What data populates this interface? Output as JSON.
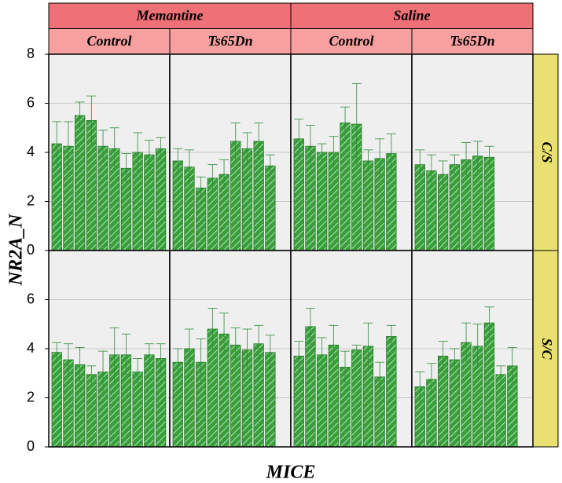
{
  "chart_data": {
    "type": "bar",
    "xlabel": "MICE",
    "ylabel": "NR2A_N",
    "ylim": [
      0,
      8
    ],
    "yticks": [
      0,
      2,
      4,
      6,
      8
    ],
    "grid": true,
    "color": "#3a9e3a",
    "column_groups": [
      {
        "label": "Memantine",
        "columns": [
          "Control",
          "Ts65Dn"
        ]
      },
      {
        "label": "Saline",
        "columns": [
          "Control",
          "Ts65Dn"
        ]
      }
    ],
    "rows": [
      "C/S",
      "S/C"
    ],
    "panels": [
      [
        {
          "values": [
            4.35,
            4.25,
            5.5,
            5.3,
            4.25,
            4.15,
            3.35,
            4.0,
            3.9,
            4.15
          ],
          "errors": [
            0.9,
            1.0,
            0.55,
            1.0,
            0.65,
            0.85,
            0.6,
            0.8,
            0.6,
            0.45
          ]
        },
        {
          "values": [
            3.65,
            3.4,
            2.55,
            2.95,
            3.1,
            4.45,
            4.15,
            4.45,
            3.45
          ],
          "errors": [
            0.5,
            0.7,
            0.45,
            0.55,
            0.6,
            0.75,
            0.65,
            0.75,
            0.45
          ]
        },
        {
          "values": [
            4.55,
            4.25,
            4.0,
            4.0,
            5.2,
            5.15,
            3.65,
            3.75,
            3.95
          ],
          "errors": [
            0.8,
            0.85,
            0.35,
            0.65,
            0.65,
            1.65,
            0.45,
            0.8,
            0.8
          ]
        },
        {
          "values": [
            3.5,
            3.25,
            3.1,
            3.5,
            3.7,
            3.85,
            3.8
          ],
          "errors": [
            0.6,
            0.65,
            0.55,
            0.4,
            0.7,
            0.6,
            0.45
          ]
        }
      ],
      [
        {
          "values": [
            3.85,
            3.55,
            3.35,
            2.95,
            3.05,
            3.75,
            3.75,
            3.05,
            3.75,
            3.6
          ],
          "errors": [
            0.4,
            0.65,
            0.7,
            0.35,
            0.85,
            1.1,
            0.85,
            0.55,
            0.45,
            0.6
          ]
        },
        {
          "values": [
            3.45,
            4.0,
            3.45,
            4.8,
            4.6,
            4.15,
            3.95,
            4.2,
            3.85
          ],
          "errors": [
            0.55,
            0.8,
            0.95,
            0.85,
            0.85,
            0.7,
            0.85,
            0.75,
            0.7
          ]
        },
        {
          "values": [
            3.7,
            4.9,
            3.75,
            4.15,
            3.25,
            3.95,
            4.1,
            2.85,
            4.5
          ],
          "errors": [
            0.6,
            0.75,
            0.7,
            0.8,
            0.65,
            0.2,
            0.95,
            0.6,
            0.45
          ]
        },
        {
          "values": [
            2.45,
            2.75,
            3.7,
            3.55,
            4.25,
            4.1,
            5.05,
            2.95,
            3.3
          ],
          "errors": [
            0.6,
            0.65,
            0.6,
            0.45,
            0.8,
            0.9,
            0.65,
            0.35,
            0.75
          ]
        }
      ]
    ]
  }
}
